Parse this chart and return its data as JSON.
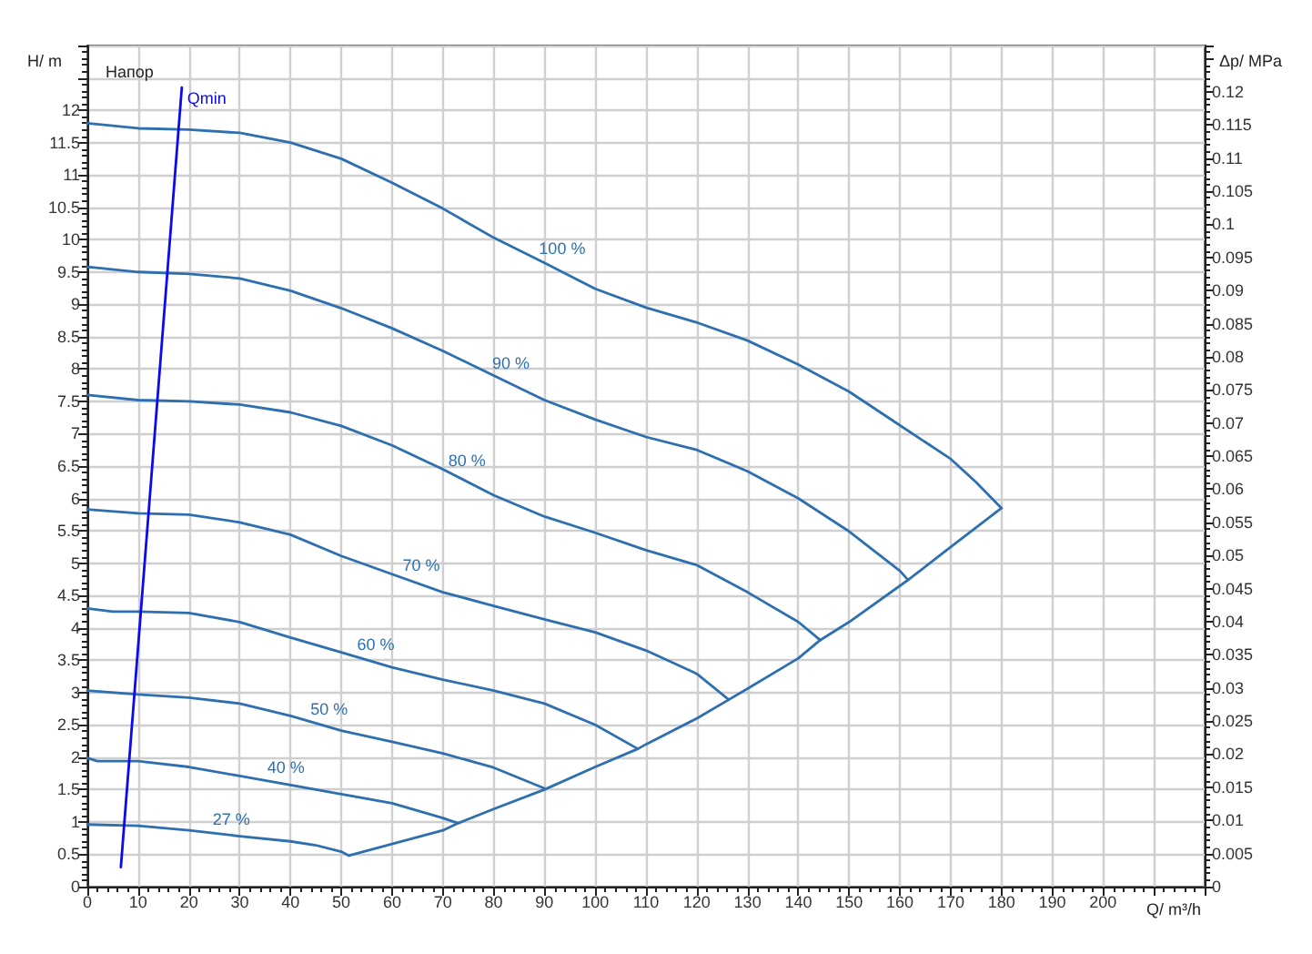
{
  "chart_data": {
    "type": "line",
    "title": "Напор",
    "xlabel": "Q/ m³/h",
    "ylabel": "H/ m",
    "y2label": "Δp/ MPa",
    "xlim": [
      0,
      220
    ],
    "xticks": [
      0,
      10,
      20,
      30,
      40,
      50,
      60,
      70,
      80,
      90,
      100,
      110,
      120,
      130,
      140,
      150,
      160,
      170,
      180,
      190,
      200
    ],
    "ylim": [
      0,
      13
    ],
    "yticks": [
      0,
      0.5,
      1,
      1.5,
      2,
      2.5,
      3,
      3.5,
      4,
      4.5,
      5,
      5.5,
      6,
      6.5,
      7,
      7.5,
      8,
      8.5,
      9,
      9.5,
      10,
      10.5,
      11,
      11.5,
      12
    ],
    "y2lim": [
      0,
      0.127
    ],
    "y2ticks": [
      0,
      0.005,
      0.01,
      0.015,
      0.02,
      0.025,
      0.03,
      0.035,
      0.04,
      0.045,
      0.05,
      0.055,
      0.06,
      0.065,
      0.07,
      0.075,
      0.08,
      0.085,
      0.09,
      0.095,
      0.1,
      0.105,
      0.11,
      0.115,
      0.12
    ],
    "grid": true,
    "series": [
      {
        "name": "100 %",
        "color": "#2e6fb0",
        "x": [
          0,
          10,
          20,
          30,
          40,
          50,
          60,
          70,
          80,
          90,
          100,
          110,
          120,
          130,
          140,
          150,
          160,
          170,
          175,
          180
        ],
        "values": [
          11.8,
          11.72,
          11.7,
          11.65,
          11.5,
          11.25,
          10.88,
          10.48,
          10.03,
          9.64,
          9.24,
          8.95,
          8.72,
          8.44,
          8.07,
          7.65,
          7.13,
          6.61,
          6.25,
          5.85
        ]
      },
      {
        "name": "90 %",
        "color": "#2e6fb0",
        "x": [
          0,
          10,
          20,
          30,
          40,
          50,
          60,
          70,
          80,
          90,
          100,
          110,
          120,
          130,
          140,
          150,
          160,
          161.6
        ],
        "values": [
          9.58,
          9.5,
          9.47,
          9.4,
          9.21,
          8.94,
          8.63,
          8.28,
          7.9,
          7.52,
          7.22,
          6.95,
          6.75,
          6.42,
          6.0,
          5.49,
          4.88,
          4.74
        ]
      },
      {
        "name": "80 %",
        "color": "#2e6fb0",
        "x": [
          0,
          10,
          20,
          30,
          40,
          50,
          60,
          70,
          80,
          90,
          100,
          110,
          120,
          130,
          140,
          144.3
        ],
        "values": [
          7.6,
          7.52,
          7.5,
          7.45,
          7.33,
          7.12,
          6.82,
          6.45,
          6.05,
          5.72,
          5.47,
          5.2,
          4.97,
          4.55,
          4.09,
          3.81
        ]
      },
      {
        "name": "70 %",
        "color": "#2e6fb0",
        "x": [
          0,
          10,
          20,
          30,
          40,
          50,
          60,
          70,
          80,
          90,
          100,
          110,
          120,
          126.3
        ],
        "values": [
          5.83,
          5.77,
          5.75,
          5.63,
          5.44,
          5.11,
          4.83,
          4.55,
          4.34,
          4.13,
          3.93,
          3.65,
          3.29,
          2.89
        ]
      },
      {
        "name": "60 %",
        "color": "#2e6fb0",
        "x": [
          0,
          5,
          10,
          20,
          30,
          40,
          50,
          60,
          70,
          80,
          90,
          100,
          108.4
        ],
        "values": [
          4.3,
          4.25,
          4.25,
          4.23,
          4.09,
          3.85,
          3.62,
          3.39,
          3.2,
          3.03,
          2.83,
          2.5,
          2.13
        ]
      },
      {
        "name": "50 %",
        "color": "#2e6fb0",
        "x": [
          0,
          10,
          20,
          30,
          40,
          50,
          60,
          70,
          80,
          90
        ],
        "values": [
          3.03,
          2.97,
          2.92,
          2.83,
          2.64,
          2.41,
          2.24,
          2.06,
          1.84,
          1.52
        ]
      },
      {
        "name": "40 %",
        "color": "#2e6fb0",
        "x": [
          0,
          2,
          10,
          20,
          30,
          40,
          50,
          60,
          70,
          73
        ],
        "values": [
          1.99,
          1.94,
          1.94,
          1.85,
          1.71,
          1.57,
          1.43,
          1.29,
          1.06,
          0.98
        ]
      },
      {
        "name": "27 %",
        "color": "#2e6fb0",
        "x": [
          0,
          10,
          20,
          30,
          40,
          45,
          50,
          51.5
        ],
        "values": [
          0.96,
          0.94,
          0.87,
          0.78,
          0.7,
          0.64,
          0.54,
          0.48
        ]
      },
      {
        "color": "#2e6fb0",
        "x": [
          51.5,
          60,
          70,
          73,
          80,
          90,
          100,
          108.4,
          110,
          120,
          126.3,
          130,
          140,
          144.3,
          150,
          160,
          161.6,
          170,
          180
        ],
        "values": [
          0.48,
          0.66,
          0.87,
          0.98,
          1.2,
          1.5,
          1.85,
          2.13,
          2.2,
          2.6,
          2.89,
          3.06,
          3.53,
          3.81,
          4.09,
          4.65,
          4.74,
          5.25,
          5.85
        ]
      },
      {
        "name": "Qmin",
        "color": "#0a0af0",
        "x": [
          6.6,
          18.6
        ],
        "values": [
          0.3,
          12.35
        ]
      }
    ]
  }
}
